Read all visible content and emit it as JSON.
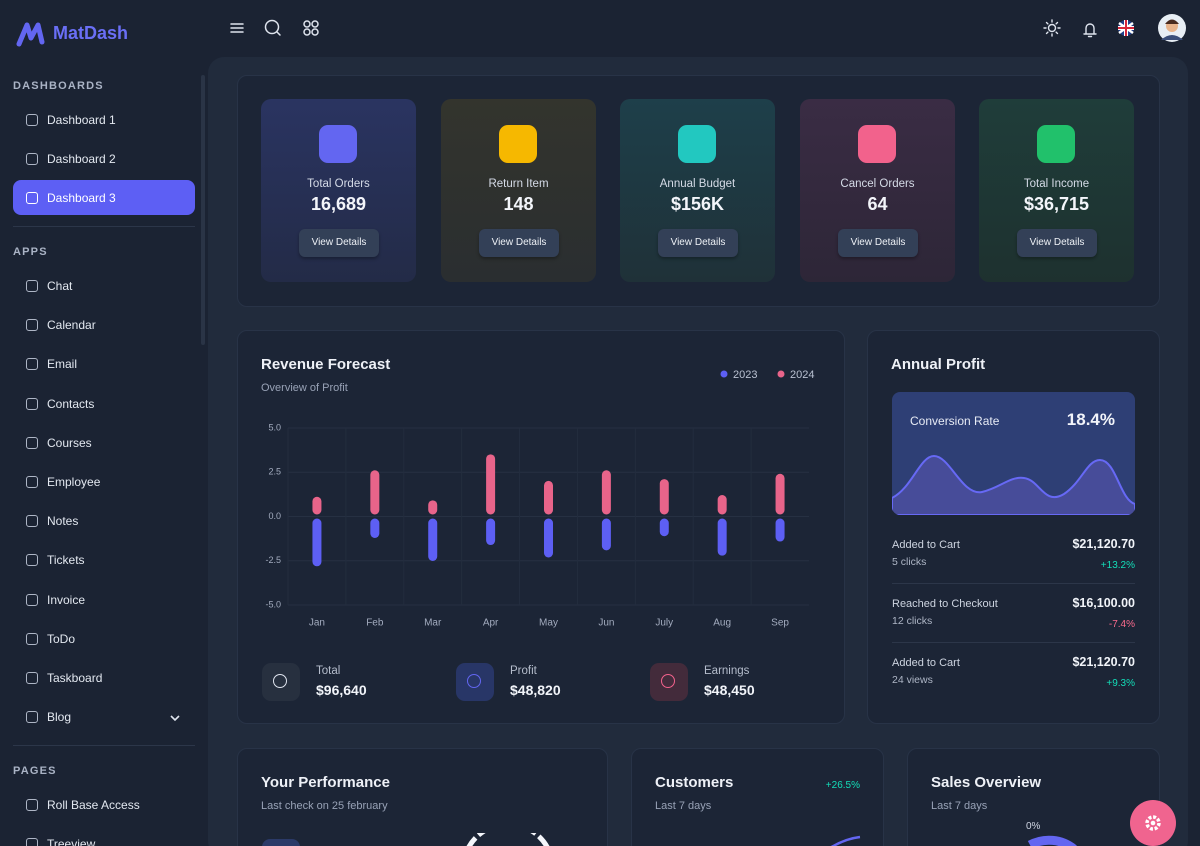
{
  "brand": "MatDash",
  "sidebar": {
    "sections": [
      {
        "title": "DASHBOARDS",
        "items": [
          "Dashboard 1",
          "Dashboard 2",
          "Dashboard 3"
        ]
      },
      {
        "title": "APPS",
        "items": [
          "Chat",
          "Calendar",
          "Email",
          "Contacts",
          "Courses",
          "Employee",
          "Notes",
          "Tickets",
          "Invoice",
          "ToDo",
          "Taskboard",
          "Blog"
        ]
      },
      {
        "title": "PAGES",
        "items": [
          "Roll Base Access",
          "Treeview"
        ]
      }
    ]
  },
  "stats": [
    {
      "label": "Total Orders",
      "value": "16,689",
      "button": "View Details"
    },
    {
      "label": "Return Item",
      "value": "148",
      "button": "View Details"
    },
    {
      "label": "Annual Budget",
      "value": "$156K",
      "button": "View Details"
    },
    {
      "label": "Cancel Orders",
      "value": "64",
      "button": "View Details"
    },
    {
      "label": "Total Income",
      "value": "$36,715",
      "button": "View Details"
    }
  ],
  "revenue_forecast": {
    "chart_data": {
      "type": "bar",
      "title": "Revenue Forecast",
      "subtitle": "Overview of Profit",
      "categories": [
        "Jan",
        "Feb",
        "Mar",
        "Apr",
        "May",
        "Jun",
        "July",
        "Aug",
        "Sep"
      ],
      "series": [
        {
          "name": "2023",
          "color": "#5d5ff4",
          "values": [
            -2.7,
            -1.1,
            -2.4,
            -1.5,
            -2.2,
            -1.8,
            -1.0,
            -2.1,
            -1.3
          ]
        },
        {
          "name": "2024",
          "color": "#e8648a",
          "values": [
            1.0,
            2.5,
            0.8,
            3.4,
            1.9,
            2.5,
            2.0,
            1.1,
            2.3
          ]
        }
      ],
      "ylim": [
        -5,
        5
      ],
      "yticks": [
        {
          "value": -5,
          "label": "-5.0"
        },
        {
          "value": -2.5,
          "label": "-2.5"
        },
        {
          "value": 0,
          "label": "0.0"
        },
        {
          "value": 2.5,
          "label": "2.5"
        },
        {
          "value": 5,
          "label": "5.0"
        }
      ],
      "grid": true
    },
    "summary": [
      {
        "label": "Total",
        "value": "$96,640"
      },
      {
        "label": "Profit",
        "value": "$48,820"
      },
      {
        "label": "Earnings",
        "value": "$48,450"
      }
    ]
  },
  "annual_profit": {
    "title": "Annual Profit",
    "rate_label": "Conversion Rate",
    "rate": "18.4%",
    "rows": [
      {
        "label": "Added to Cart",
        "detail": "5 clicks",
        "amount": "$21,120.70",
        "change": "+13.2%"
      },
      {
        "label": "Reached to Checkout",
        "detail": "12 clicks",
        "amount": "$16,100.00",
        "change": "-7.4%"
      },
      {
        "label": "Added to Cart",
        "detail": "24 views",
        "amount": "$21,120.70",
        "change": "+9.3%"
      }
    ]
  },
  "performance": {
    "title": "Your Performance",
    "subtitle": "Last check on 25 february"
  },
  "customers": {
    "title": "Customers",
    "subtitle": "Last 7 days",
    "change": "+26.5%"
  },
  "sales_overview": {
    "title": "Sales Overview",
    "subtitle": "Last 7 days",
    "gauge_label": "0%"
  }
}
